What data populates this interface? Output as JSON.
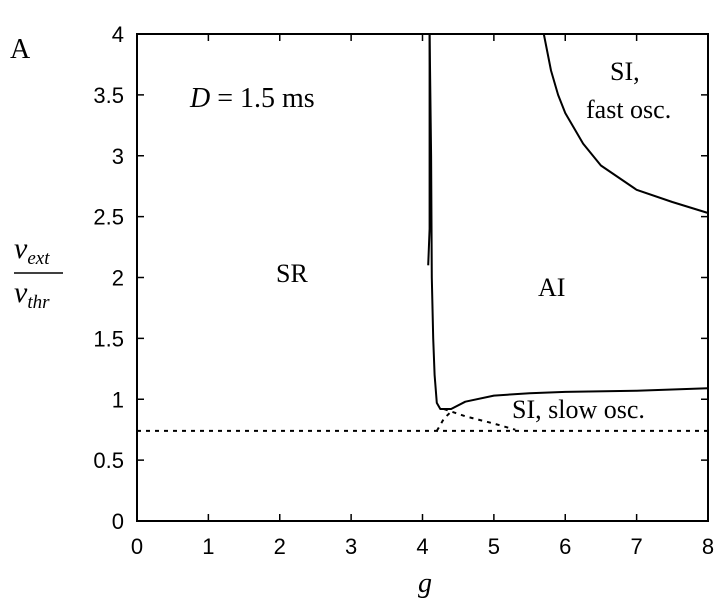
{
  "chart_data": {
    "type": "line",
    "panel_label": "A",
    "annotation": {
      "var": "D",
      "eq": " = 1.5 ",
      "unit": "ms"
    },
    "xlabel": "g",
    "ylabel": {
      "numerator": "ν",
      "numerator_sub": "ext",
      "denominator": "ν",
      "denominator_sub": "thr"
    },
    "xlim": [
      0,
      8
    ],
    "ylim": [
      0,
      4
    ],
    "x_ticks": [
      "0",
      "1",
      "2",
      "3",
      "4",
      "5",
      "6",
      "7",
      "8"
    ],
    "y_ticks": [
      "0",
      "0.5",
      "1",
      "1.5",
      "2",
      "2.5",
      "3",
      "3.5",
      "4"
    ],
    "grid": false,
    "regions": {
      "sr": "SR",
      "ai": "AI",
      "si_fast_1": "SI,",
      "si_fast_2": "fast osc.",
      "si_slow": "SI, slow osc."
    },
    "series": [
      {
        "style": "solid",
        "points": [
          [
            4.08,
            2.1
          ],
          [
            4.1,
            2.4
          ],
          [
            4.1,
            3.0
          ],
          [
            4.1,
            4.0
          ]
        ]
      },
      {
        "style": "solid",
        "points": [
          [
            4.1,
            4.0
          ],
          [
            4.12,
            3.0
          ],
          [
            4.13,
            2.0
          ],
          [
            4.15,
            1.5
          ],
          [
            4.17,
            1.2
          ],
          [
            4.2,
            0.97
          ],
          [
            4.25,
            0.92
          ],
          [
            4.4,
            0.92
          ],
          [
            4.6,
            0.98
          ],
          [
            5.0,
            1.03
          ],
          [
            5.5,
            1.05
          ],
          [
            6,
            1.06
          ],
          [
            7,
            1.07
          ],
          [
            8,
            1.09
          ]
        ]
      },
      {
        "style": "solid",
        "points": [
          [
            5.7,
            4.0
          ],
          [
            5.8,
            3.7
          ],
          [
            5.9,
            3.5
          ],
          [
            6.0,
            3.35
          ],
          [
            6.25,
            3.1
          ],
          [
            6.5,
            2.92
          ],
          [
            7.0,
            2.72
          ],
          [
            7.5,
            2.62
          ],
          [
            8.0,
            2.53
          ]
        ]
      },
      {
        "style": "dashed",
        "points": [
          [
            0,
            0.74
          ],
          [
            8,
            0.74
          ]
        ]
      },
      {
        "style": "dashed",
        "points": [
          [
            4.3,
            0.92
          ],
          [
            4.6,
            0.86
          ],
          [
            5.0,
            0.8
          ],
          [
            5.3,
            0.75
          ]
        ]
      },
      {
        "style": "dashed",
        "points": [
          [
            4.2,
            0.74
          ],
          [
            4.3,
            0.84
          ],
          [
            4.42,
            0.91
          ]
        ]
      }
    ]
  }
}
